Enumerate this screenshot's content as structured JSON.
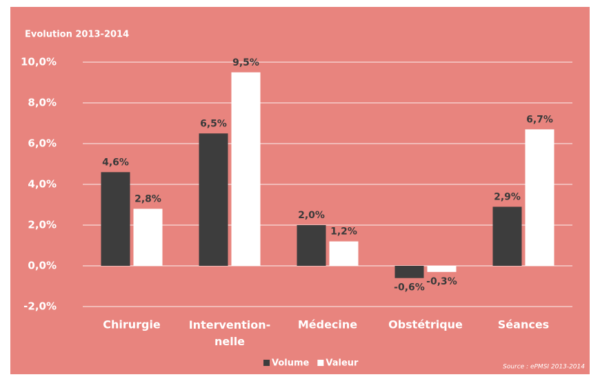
{
  "chart_data": {
    "type": "bar",
    "title": "Evolution 2013-2014",
    "categories": [
      "Chirurgie",
      "Intervention-\nnelle",
      "Médecine",
      "Obstétrique",
      "Séances"
    ],
    "series": [
      {
        "name": "Volume",
        "color": "#3d3d3d",
        "values": [
          4.6,
          6.5,
          2.0,
          -0.6,
          2.9
        ],
        "value_labels": [
          "4,6%",
          "6,5%",
          "2,0%",
          "-0,6%",
          "2,9%"
        ]
      },
      {
        "name": "Valeur",
        "color": "#ffffff",
        "values": [
          2.8,
          9.5,
          1.2,
          -0.3,
          6.7
        ],
        "value_labels": [
          "2,8%",
          "9,5%",
          "1,2%",
          "-0,3%",
          "6,7%"
        ]
      }
    ],
    "ylim": [
      -2,
      10
    ],
    "yticks": [
      {
        "value": -2,
        "label": "-2,0%"
      },
      {
        "value": 0,
        "label": "0,0%"
      },
      {
        "value": 2,
        "label": "2,0%"
      },
      {
        "value": 4,
        "label": "4,0%"
      },
      {
        "value": 6,
        "label": "6,0%"
      },
      {
        "value": 8,
        "label": "8,0%"
      },
      {
        "value": 10,
        "label": "10,0%"
      }
    ],
    "grid": true,
    "legend": "bottom",
    "source": "Source : ePMSI 2013-2014",
    "background": "#e8847e"
  }
}
